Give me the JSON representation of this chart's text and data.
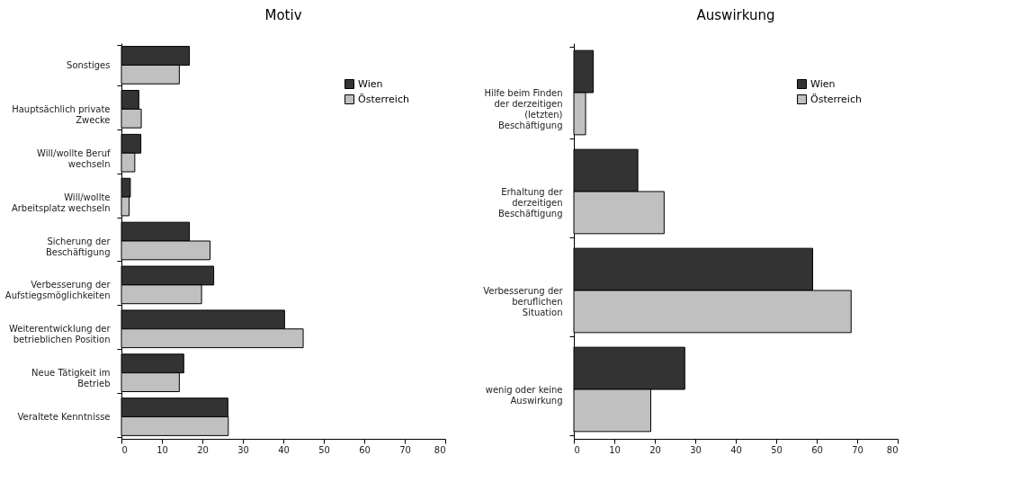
{
  "chart_data": [
    {
      "type": "bar",
      "orientation": "horizontal",
      "title": "Motiv",
      "categories": [
        "Sonstiges",
        "Hauptsächlich private Zwecke",
        "Will/wollte Beruf wechseln",
        "Will/wollte Arbeitsplatz wechseln",
        "Sicherung der Beschäftigung",
        "Verbesserung der Aufstiegsmöglichkeiten",
        "Weiterentwicklung der betrieblichen Position",
        "Neue Tätigkeit im Betrieb",
        "Veraltete Kenntnisse"
      ],
      "series": [
        {
          "name": "Wien",
          "color": "#333333",
          "values": [
            16.8,
            4.3,
            4.8,
            2.2,
            16.8,
            22.8,
            40.3,
            15.4,
            26.3
          ]
        },
        {
          "name": "Österreich",
          "color": "#c0c0c0",
          "values": [
            14.3,
            4.9,
            3.3,
            1.9,
            21.9,
            19.8,
            44.9,
            14.3,
            26.4
          ]
        }
      ],
      "xlim": [
        0,
        80
      ],
      "xticks": [
        0,
        10,
        20,
        30,
        40,
        50,
        60,
        70,
        80
      ],
      "legend": "top right"
    },
    {
      "type": "bar",
      "orientation": "horizontal",
      "title": "Auswirkung",
      "categories": [
        "Hilfe beim Finden der derzeitigen (letzten) Beschäftigung",
        "Erhaltung der derzeitigen Beschäftigung",
        "Verbesserung der beruflichen Situation",
        "wenig oder keine Auswirkung"
      ],
      "series": [
        {
          "name": "Wien",
          "color": "#333333",
          "values": [
            4.8,
            15.8,
            59.0,
            27.4
          ]
        },
        {
          "name": "Österreich",
          "color": "#c0c0c0",
          "values": [
            2.9,
            22.3,
            68.5,
            19.0
          ]
        }
      ],
      "xlim": [
        0,
        80
      ],
      "xticks": [
        0,
        10,
        20,
        30,
        40,
        50,
        60,
        70,
        80
      ],
      "legend": "top right"
    }
  ]
}
